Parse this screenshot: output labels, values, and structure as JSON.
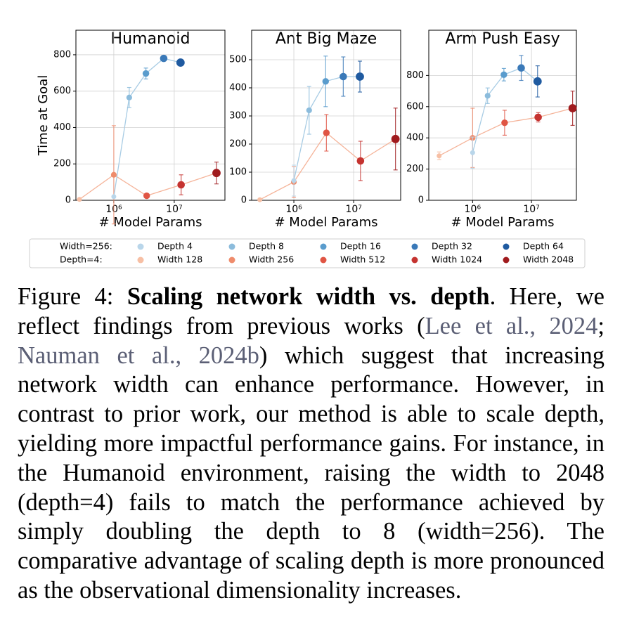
{
  "chart_data": [
    {
      "type": "line",
      "title": "Humanoid",
      "ylabel": "Time at Goal",
      "xlabel": "# Model Params",
      "log_x": true,
      "grid": true,
      "xlim": [
        236000,
        69000000
      ],
      "ylim": [
        0,
        935
      ],
      "xticks": [
        {
          "value": 1000000,
          "label": "10⁶"
        },
        {
          "value": 10000000,
          "label": "10⁷"
        }
      ],
      "yticks": [
        0,
        200,
        400,
        600,
        800
      ],
      "series": [
        {
          "line_color": "#f5b49a",
          "point_colors": [
            "#f7bfa4",
            "#ef8c6c",
            "#e05544",
            "#c53330",
            "#a01b1e"
          ],
          "x": [
            270000,
            1000000,
            3500000,
            13000000,
            50000000
          ],
          "values": [
            5,
            140,
            25,
            85,
            150
          ],
          "errors": [
            5,
            270,
            10,
            55,
            60
          ]
        },
        {
          "line_color": "#a8cce4",
          "point_colors": [
            "#b9d6ea",
            "#8cbcdc",
            "#5a9ccd",
            "#3a79b8",
            "#1f5aa0"
          ],
          "x": [
            1000000,
            1800000,
            3400000,
            6700000,
            12700000
          ],
          "values": [
            20,
            565,
            697,
            780,
            757
          ],
          "errors": [
            5,
            55,
            30,
            10,
            12
          ]
        }
      ]
    },
    {
      "type": "line",
      "title": "Ant Big Maze",
      "xlabel": "# Model Params",
      "log_x": true,
      "grid": true,
      "xlim": [
        197000,
        61000000
      ],
      "ylim": [
        0,
        605
      ],
      "xticks": [
        {
          "value": 1000000,
          "label": "10⁶"
        },
        {
          "value": 10000000,
          "label": "10⁷"
        }
      ],
      "yticks": [
        0,
        100,
        200,
        300,
        400,
        500
      ],
      "series": [
        {
          "line_color": "#f5b49a",
          "point_colors": [
            "#f7bfa4",
            "#ef8c6c",
            "#e05544",
            "#c53330",
            "#a01b1e"
          ],
          "x": [
            270000,
            1000000,
            3500000,
            13000000,
            50000000
          ],
          "values": [
            2,
            65,
            240,
            140,
            218
          ],
          "errors": [
            3,
            55,
            65,
            70,
            110
          ]
        },
        {
          "line_color": "#a8cce4",
          "point_colors": [
            "#b9d6ea",
            "#8cbcdc",
            "#5a9ccd",
            "#3a79b8",
            "#1f5aa0"
          ],
          "x": [
            1000000,
            1800000,
            3400000,
            6700000,
            12700000
          ],
          "values": [
            70,
            320,
            423,
            440,
            440
          ],
          "errors": [
            55,
            85,
            90,
            70,
            55
          ]
        }
      ]
    },
    {
      "type": "line",
      "title": "Arm Push Easy",
      "xlabel": "# Model Params",
      "log_x": true,
      "grid": true,
      "xlim": [
        180000,
        58000000
      ],
      "ylim": [
        0,
        1090
      ],
      "xticks": [
        {
          "value": 1000000,
          "label": "10⁶"
        },
        {
          "value": 10000000,
          "label": "10⁷"
        }
      ],
      "yticks": [
        0,
        200,
        400,
        600,
        800
      ],
      "series": [
        {
          "line_color": "#f5b49a",
          "point_colors": [
            "#f7bfa4",
            "#ef8c6c",
            "#e05544",
            "#c53330",
            "#a01b1e"
          ],
          "x": [
            270000,
            1000000,
            3500000,
            13000000,
            50000000
          ],
          "values": [
            285,
            400,
            497,
            532,
            590
          ],
          "errors": [
            25,
            190,
            80,
            30,
            110
          ]
        },
        {
          "line_color": "#a8cce4",
          "point_colors": [
            "#b9d6ea",
            "#8cbcdc",
            "#5a9ccd",
            "#3a79b8",
            "#1f5aa0"
          ],
          "x": [
            1000000,
            1800000,
            3400000,
            6700000,
            12700000
          ],
          "values": [
            305,
            670,
            805,
            848,
            762
          ],
          "errors": [
            100,
            50,
            40,
            80,
            100
          ]
        }
      ]
    }
  ],
  "legend": {
    "groups": [
      {
        "label": "Width=256:",
        "entries": [
          {
            "name": "Depth 4",
            "color": "#b9d6ea"
          },
          {
            "name": "Depth 8",
            "color": "#8cbcdc"
          },
          {
            "name": "Depth 16",
            "color": "#5a9ccd"
          },
          {
            "name": "Depth 32",
            "color": "#3a79b8"
          },
          {
            "name": "Depth 64",
            "color": "#1f5aa0"
          }
        ]
      },
      {
        "label": "Depth=4:",
        "entries": [
          {
            "name": "Width 128",
            "color": "#f7bfa4"
          },
          {
            "name": "Width 256",
            "color": "#ef8c6c"
          },
          {
            "name": "Width 512",
            "color": "#e05544"
          },
          {
            "name": "Width 1024",
            "color": "#c53330"
          },
          {
            "name": "Width 2048",
            "color": "#a01b1e"
          }
        ]
      }
    ]
  },
  "caption": {
    "label": "Figure 4:",
    "title": "Scaling network width vs. depth",
    "text_1": ". Here, we reflect findings from previous works (",
    "cite_1": "Lee et al., 2024",
    "text_2": "; ",
    "cite_2": "Nauman et al., 2024b",
    "text_3": ") which suggest that increasing network width can enhance performance. However, in contrast to prior work, our method is able to scale depth, yielding more impactful performance gains. For instance, in the Humanoid environment, raising the width to 2048 (depth=4) fails to match the performance achieved by simply doubling the depth to 8 (width=256). The comparative advantage of scaling depth is more pronounced as the observational dimensionality increases."
  }
}
